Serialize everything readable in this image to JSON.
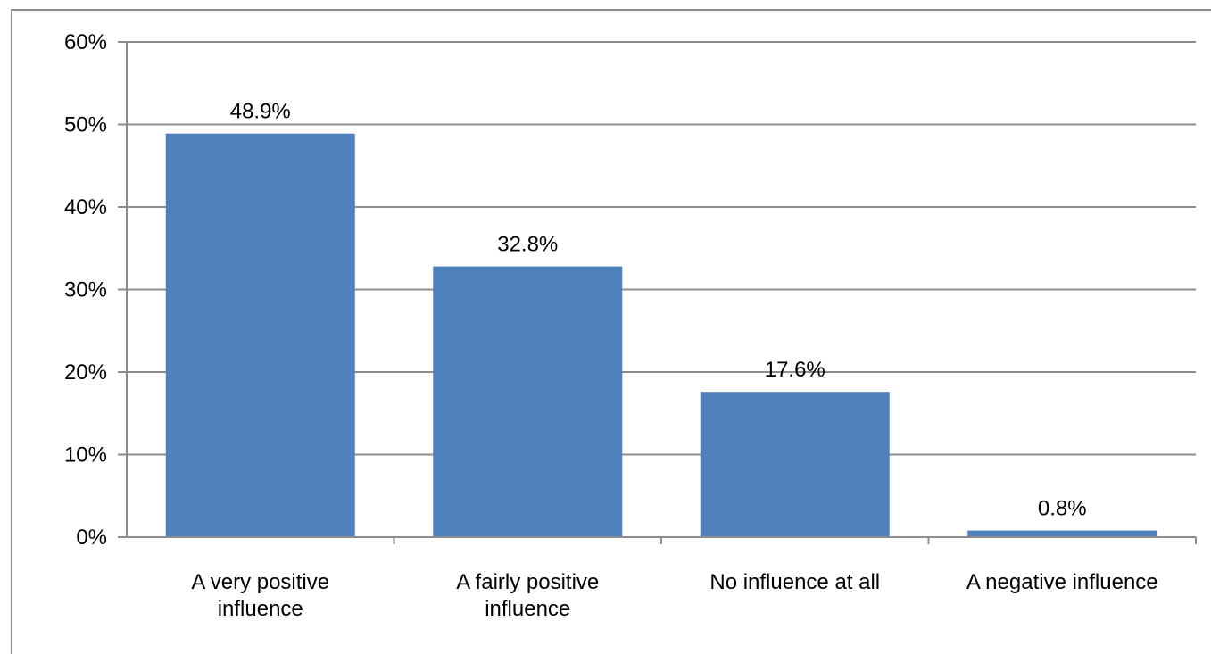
{
  "chart_data": {
    "type": "bar",
    "categories": [
      [
        "A very positive",
        "influence"
      ],
      [
        "A fairly positive",
        "influence"
      ],
      [
        "No influence at all"
      ],
      [
        "A negative influence"
      ]
    ],
    "values": [
      48.9,
      32.8,
      17.6,
      0.8
    ],
    "data_labels": [
      "48.9%",
      "32.8%",
      "17.6%",
      "0.8%"
    ],
    "y_ticks": [
      "0%",
      "10%",
      "20%",
      "30%",
      "40%",
      "50%",
      "60%"
    ],
    "y_tick_values": [
      0,
      10,
      20,
      30,
      40,
      50,
      60
    ],
    "ylim": [
      0,
      60
    ],
    "grid": true,
    "legend": "none",
    "bar_color": "#4f81bd",
    "grid_color": "#8c8c8c"
  }
}
